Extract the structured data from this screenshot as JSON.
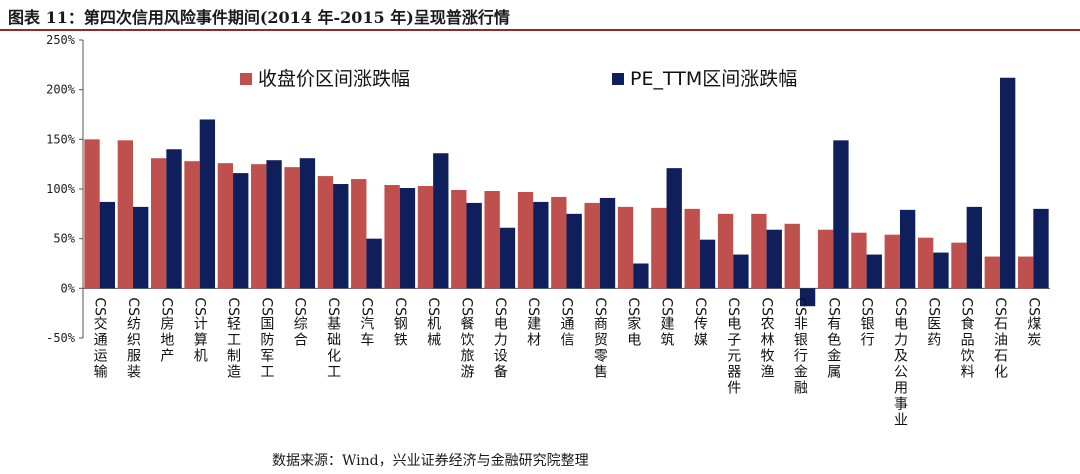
{
  "title": "图表 11：第四次信用风险事件期间(2014 年-2015 年)呈现普涨行情",
  "source": "数据来源：Wind，兴业证券经济与金融研究院整理",
  "colors": {
    "series1": "#c0504d",
    "series2": "#0f1f5c"
  },
  "chart_data": {
    "type": "bar",
    "categories": [
      "CS交通运输",
      "CS纺织服装",
      "CS房地产",
      "CS计算机",
      "CS轻工制造",
      "CS国防军工",
      "CS综合",
      "CS基础化工",
      "CS汽车",
      "CS钢铁",
      "CS机械",
      "CS餐饮旅游",
      "CS电力设备",
      "CS建材",
      "CS通信",
      "CS商贸零售",
      "CS家电",
      "CS建筑",
      "CS传媒",
      "CS电子元器件",
      "CS农林牧渔",
      "CS非银行金融",
      "CS有色金属",
      "CS银行",
      "CS电力及公用事业",
      "CS医药",
      "CS食品饮料",
      "CS石油石化",
      "CS煤炭"
    ],
    "series": [
      {
        "name": "收盘价区间涨跌幅",
        "values": [
          150,
          149,
          131,
          128,
          126,
          125,
          122,
          113,
          110,
          104,
          103,
          99,
          98,
          97,
          92,
          86,
          82,
          81,
          80,
          75,
          75,
          65,
          59,
          56,
          54,
          51,
          46,
          32,
          32
        ]
      },
      {
        "name": "PE_TTM区间涨跌幅",
        "values": [
          87,
          82,
          140,
          170,
          116,
          129,
          131,
          105,
          50,
          101,
          136,
          86,
          61,
          87,
          75,
          91,
          25,
          121,
          49,
          34,
          59,
          -18,
          149,
          34,
          79,
          36,
          82,
          212,
          80
        ]
      }
    ],
    "ylim": [
      -50,
      250
    ],
    "yticks": [
      "-50%",
      "0%",
      "50%",
      "100%",
      "150%",
      "200%",
      "250%"
    ],
    "legend_position": "top",
    "grid": false
  }
}
